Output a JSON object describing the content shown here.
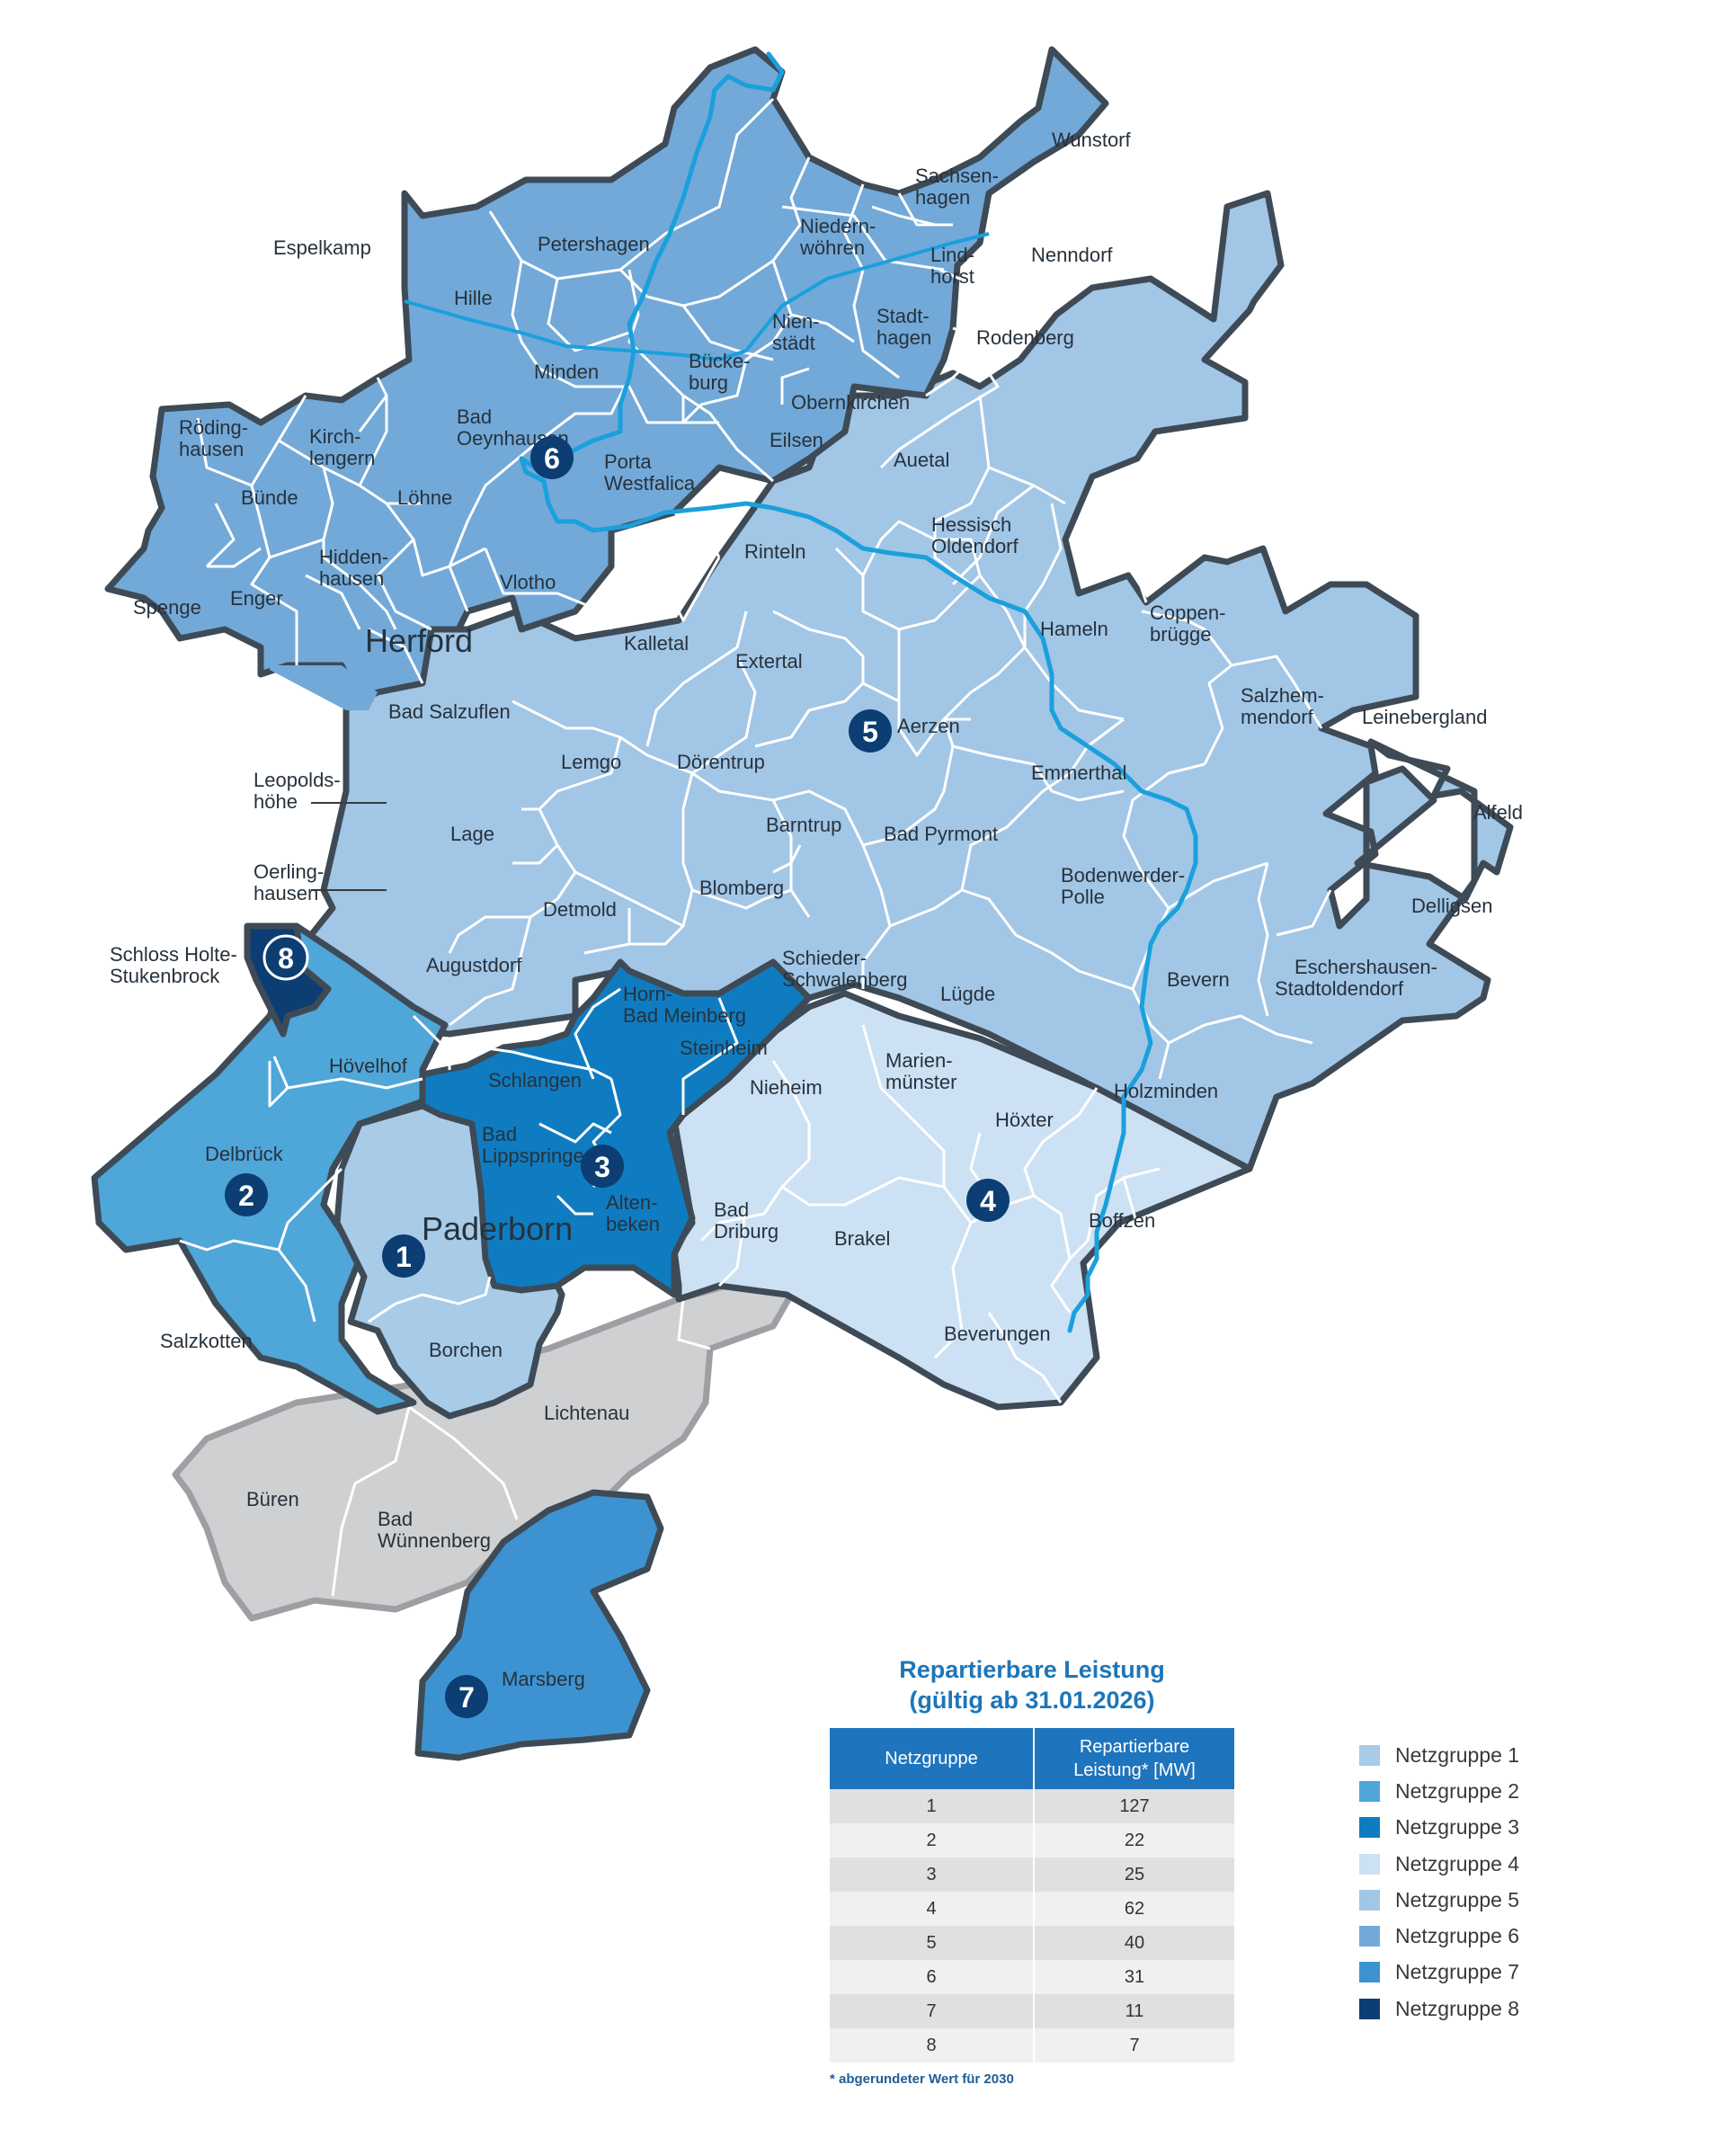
{
  "colors": {
    "background": "#ffffff",
    "border_dark": "#3e4b56",
    "border_light": "#ffffff",
    "river": "#1aa0dc",
    "grey_area": "#cfd0d2",
    "grey_border": "#9d9fa2",
    "table_header": "#1e74bd",
    "title_blue": "#1d76b8"
  },
  "netzgruppen": [
    {
      "id": "1",
      "label": "Netzgruppe 1",
      "color": "#a8cbe7",
      "badge": "1"
    },
    {
      "id": "2",
      "label": "Netzgruppe 2",
      "color": "#4fa6d9",
      "badge": "2"
    },
    {
      "id": "3",
      "label": "Netzgruppe 3",
      "color": "#0f7cc1",
      "badge": "3"
    },
    {
      "id": "4",
      "label": "Netzgruppe 4",
      "color": "#cde1f4",
      "badge": "4"
    },
    {
      "id": "5",
      "label": "Netzgruppe 5",
      "color": "#a2c6e6",
      "badge": "5"
    },
    {
      "id": "6",
      "label": "Netzgruppe 6",
      "color": "#72a9d8",
      "badge": "6"
    },
    {
      "id": "7",
      "label": "Netzgruppe 7",
      "color": "#3d93d1",
      "badge": "7"
    },
    {
      "id": "8",
      "label": "Netzgruppe 8",
      "color": "#0c3d73",
      "badge": "8"
    }
  ],
  "places": {
    "espelkamp": "Espelkamp",
    "petershagen": "Petershagen",
    "hille": "Hille",
    "minden": "Minden",
    "bueckeburg1": "Bücke-",
    "bueckeburg2": "burg",
    "niedernwoehren1": "Niedern-",
    "niedernwoehren2": "wöhren",
    "sachsenhagen1": "Sachsen-",
    "sachsenhagen2": "hagen",
    "wunstorf": "Wunstorf",
    "lindhorst1": "Lind-",
    "lindhorst2": "horst",
    "nenndorf": "Nenndorf",
    "nienstaedt1": "Nien-",
    "nienstaedt2": "städt",
    "stadthagen1": "Stadt-",
    "stadthagen2": "hagen",
    "rodenberg": "Rodenberg",
    "obernkirchen": "Obernkirchen",
    "eilsen": "Eilsen",
    "auetal": "Auetal",
    "roedinghausen1": "Röding-",
    "roedinghausen2": "hausen",
    "kirchlengern1": "Kirch-",
    "kirchlengern2": "lengern",
    "buende": "Bünde",
    "loehne": "Löhne",
    "bad_oeynhausen1": "Bad",
    "bad_oeynhausen2": "Oeynhausen",
    "porta1": "Porta",
    "porta2": "Westfalica",
    "hessisch1": "Hessisch",
    "hessisch2": "Oldendorf",
    "rinteln": "Rinteln",
    "spenge": "Spenge",
    "enger": "Enger",
    "hiddenhausen1": "Hidden-",
    "hiddenhausen2": "hausen",
    "vlotho": "Vlotho",
    "herford": "Herford",
    "kalletal": "Kalletal",
    "extertal": "Extertal",
    "hameln": "Hameln",
    "coppenbruegge1": "Coppen-",
    "coppenbruegge2": "brügge",
    "salzhemmendorf1": "Salzhem-",
    "salzhemmendorf2": "mendorf",
    "leinebergland": "Leinebergland",
    "bad_salzuflen": "Bad Salzuflen",
    "aerzen": "Aerzen",
    "lemgo": "Lemgo",
    "doerentrup": "Dörentrup",
    "emmerthal": "Emmerthal",
    "leopoldshoehe1": "Leopolds-",
    "leopoldshoehe2": "höhe",
    "alfeld": "Alfeld",
    "lage": "Lage",
    "barntrup": "Barntrup",
    "bad_pyrmont": "Bad Pyrmont",
    "oerlinghausen1": "Oerling-",
    "oerlinghausen2": "hausen",
    "bodenwerder1": "Bodenwerder-",
    "bodenwerder2": "Polle",
    "blomberg": "Blomberg",
    "detmold": "Detmold",
    "delligsen": "Delligsen",
    "schloss1": "Schloss Holte-",
    "schloss2": "Stukenbrock",
    "augustdorf": "Augustdorf",
    "schieder1": "Schieder-",
    "schieder2": "Schwalenberg",
    "eschershausen1": "Eschershausen-",
    "eschershausen2": "Stadtoldendorf",
    "horn1": "Horn-",
    "horn2": "Bad Meinberg",
    "luegde": "Lügde",
    "bevern": "Bevern",
    "steinheim": "Steinheim",
    "marienmuenster1": "Marien-",
    "marienmuenster2": "münster",
    "hoevelhof": "Hövelhof",
    "schlangen": "Schlangen",
    "nieheim": "Nieheim",
    "holzminden": "Holzminden",
    "hoexter": "Höxter",
    "bad_lippspringe1": "Bad",
    "bad_lippspringe2": "Lippspringe",
    "delbrueck": "Delbrück",
    "altenbeken1": "Alten-",
    "altenbeken2": "beken",
    "bad_driburg1": "Bad",
    "bad_driburg2": "Driburg",
    "paderborn": "Paderborn",
    "boffzen": "Boffzen",
    "brakel": "Brakel",
    "borchen": "Borchen",
    "beverungen": "Beverungen",
    "salzkotten": "Salzkotten",
    "lichtenau": "Lichtenau",
    "bueren": "Büren",
    "bad_wuennenberg1": "Bad",
    "bad_wuennenberg2": "Wünnenberg",
    "marsberg": "Marsberg"
  },
  "table": {
    "title_line1": "Repartierbare Leistung",
    "title_line2": "(gültig ab 31.01.2026)",
    "header_netzgruppe": "Netzgruppe",
    "header_leistung_line1": "Repartierbare",
    "header_leistung_line2": "Leistung* [MW]",
    "rows": [
      {
        "netzgruppe": "1",
        "leistung": "127"
      },
      {
        "netzgruppe": "2",
        "leistung": "22"
      },
      {
        "netzgruppe": "3",
        "leistung": "25"
      },
      {
        "netzgruppe": "4",
        "leistung": "62"
      },
      {
        "netzgruppe": "5",
        "leistung": "40"
      },
      {
        "netzgruppe": "6",
        "leistung": "31"
      },
      {
        "netzgruppe": "7",
        "leistung": "11"
      },
      {
        "netzgruppe": "8",
        "leistung": "7"
      }
    ],
    "footnote": "* abgerundeter Wert für 2030"
  }
}
